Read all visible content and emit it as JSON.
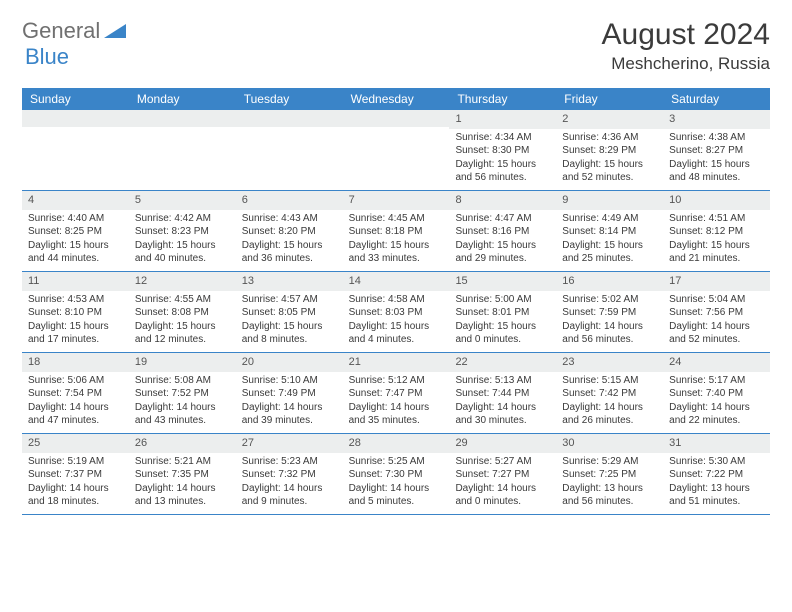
{
  "logo": {
    "general": "General",
    "blue": "Blue"
  },
  "title": "August 2024",
  "location": "Meshcherino, Russia",
  "colors": {
    "header_bg": "#3a84c8",
    "header_text": "#ffffff",
    "daynum_bg": "#eceeee",
    "border": "#3a84c8",
    "body_text": "#3a3a3a",
    "title_text": "#3b3b3b"
  },
  "dow": [
    "Sunday",
    "Monday",
    "Tuesday",
    "Wednesday",
    "Thursday",
    "Friday",
    "Saturday"
  ],
  "weeks": [
    [
      null,
      null,
      null,
      null,
      {
        "n": "1",
        "sr": "Sunrise: 4:34 AM",
        "ss": "Sunset: 8:30 PM",
        "dl": "Daylight: 15 hours and 56 minutes."
      },
      {
        "n": "2",
        "sr": "Sunrise: 4:36 AM",
        "ss": "Sunset: 8:29 PM",
        "dl": "Daylight: 15 hours and 52 minutes."
      },
      {
        "n": "3",
        "sr": "Sunrise: 4:38 AM",
        "ss": "Sunset: 8:27 PM",
        "dl": "Daylight: 15 hours and 48 minutes."
      }
    ],
    [
      {
        "n": "4",
        "sr": "Sunrise: 4:40 AM",
        "ss": "Sunset: 8:25 PM",
        "dl": "Daylight: 15 hours and 44 minutes."
      },
      {
        "n": "5",
        "sr": "Sunrise: 4:42 AM",
        "ss": "Sunset: 8:23 PM",
        "dl": "Daylight: 15 hours and 40 minutes."
      },
      {
        "n": "6",
        "sr": "Sunrise: 4:43 AM",
        "ss": "Sunset: 8:20 PM",
        "dl": "Daylight: 15 hours and 36 minutes."
      },
      {
        "n": "7",
        "sr": "Sunrise: 4:45 AM",
        "ss": "Sunset: 8:18 PM",
        "dl": "Daylight: 15 hours and 33 minutes."
      },
      {
        "n": "8",
        "sr": "Sunrise: 4:47 AM",
        "ss": "Sunset: 8:16 PM",
        "dl": "Daylight: 15 hours and 29 minutes."
      },
      {
        "n": "9",
        "sr": "Sunrise: 4:49 AM",
        "ss": "Sunset: 8:14 PM",
        "dl": "Daylight: 15 hours and 25 minutes."
      },
      {
        "n": "10",
        "sr": "Sunrise: 4:51 AM",
        "ss": "Sunset: 8:12 PM",
        "dl": "Daylight: 15 hours and 21 minutes."
      }
    ],
    [
      {
        "n": "11",
        "sr": "Sunrise: 4:53 AM",
        "ss": "Sunset: 8:10 PM",
        "dl": "Daylight: 15 hours and 17 minutes."
      },
      {
        "n": "12",
        "sr": "Sunrise: 4:55 AM",
        "ss": "Sunset: 8:08 PM",
        "dl": "Daylight: 15 hours and 12 minutes."
      },
      {
        "n": "13",
        "sr": "Sunrise: 4:57 AM",
        "ss": "Sunset: 8:05 PM",
        "dl": "Daylight: 15 hours and 8 minutes."
      },
      {
        "n": "14",
        "sr": "Sunrise: 4:58 AM",
        "ss": "Sunset: 8:03 PM",
        "dl": "Daylight: 15 hours and 4 minutes."
      },
      {
        "n": "15",
        "sr": "Sunrise: 5:00 AM",
        "ss": "Sunset: 8:01 PM",
        "dl": "Daylight: 15 hours and 0 minutes."
      },
      {
        "n": "16",
        "sr": "Sunrise: 5:02 AM",
        "ss": "Sunset: 7:59 PM",
        "dl": "Daylight: 14 hours and 56 minutes."
      },
      {
        "n": "17",
        "sr": "Sunrise: 5:04 AM",
        "ss": "Sunset: 7:56 PM",
        "dl": "Daylight: 14 hours and 52 minutes."
      }
    ],
    [
      {
        "n": "18",
        "sr": "Sunrise: 5:06 AM",
        "ss": "Sunset: 7:54 PM",
        "dl": "Daylight: 14 hours and 47 minutes."
      },
      {
        "n": "19",
        "sr": "Sunrise: 5:08 AM",
        "ss": "Sunset: 7:52 PM",
        "dl": "Daylight: 14 hours and 43 minutes."
      },
      {
        "n": "20",
        "sr": "Sunrise: 5:10 AM",
        "ss": "Sunset: 7:49 PM",
        "dl": "Daylight: 14 hours and 39 minutes."
      },
      {
        "n": "21",
        "sr": "Sunrise: 5:12 AM",
        "ss": "Sunset: 7:47 PM",
        "dl": "Daylight: 14 hours and 35 minutes."
      },
      {
        "n": "22",
        "sr": "Sunrise: 5:13 AM",
        "ss": "Sunset: 7:44 PM",
        "dl": "Daylight: 14 hours and 30 minutes."
      },
      {
        "n": "23",
        "sr": "Sunrise: 5:15 AM",
        "ss": "Sunset: 7:42 PM",
        "dl": "Daylight: 14 hours and 26 minutes."
      },
      {
        "n": "24",
        "sr": "Sunrise: 5:17 AM",
        "ss": "Sunset: 7:40 PM",
        "dl": "Daylight: 14 hours and 22 minutes."
      }
    ],
    [
      {
        "n": "25",
        "sr": "Sunrise: 5:19 AM",
        "ss": "Sunset: 7:37 PM",
        "dl": "Daylight: 14 hours and 18 minutes."
      },
      {
        "n": "26",
        "sr": "Sunrise: 5:21 AM",
        "ss": "Sunset: 7:35 PM",
        "dl": "Daylight: 14 hours and 13 minutes."
      },
      {
        "n": "27",
        "sr": "Sunrise: 5:23 AM",
        "ss": "Sunset: 7:32 PM",
        "dl": "Daylight: 14 hours and 9 minutes."
      },
      {
        "n": "28",
        "sr": "Sunrise: 5:25 AM",
        "ss": "Sunset: 7:30 PM",
        "dl": "Daylight: 14 hours and 5 minutes."
      },
      {
        "n": "29",
        "sr": "Sunrise: 5:27 AM",
        "ss": "Sunset: 7:27 PM",
        "dl": "Daylight: 14 hours and 0 minutes."
      },
      {
        "n": "30",
        "sr": "Sunrise: 5:29 AM",
        "ss": "Sunset: 7:25 PM",
        "dl": "Daylight: 13 hours and 56 minutes."
      },
      {
        "n": "31",
        "sr": "Sunrise: 5:30 AM",
        "ss": "Sunset: 7:22 PM",
        "dl": "Daylight: 13 hours and 51 minutes."
      }
    ]
  ]
}
